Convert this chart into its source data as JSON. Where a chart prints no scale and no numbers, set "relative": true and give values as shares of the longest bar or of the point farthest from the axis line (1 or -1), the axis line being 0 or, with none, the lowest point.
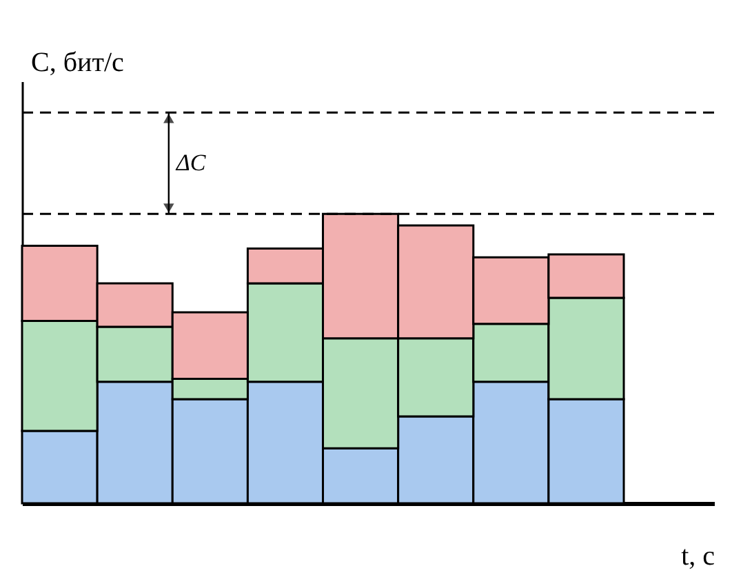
{
  "chart_data": {
    "type": "bar",
    "stacked": true,
    "relative": true,
    "xlabel": "t, с",
    "ylabel": "C, бит/с",
    "categories": [
      null,
      null,
      null,
      null,
      null,
      null,
      null,
      null
    ],
    "series": [
      {
        "color": "#a9c9ef",
        "values": [
          0.25,
          0.42,
          0.36,
          0.42,
          0.19,
          0.3,
          0.42,
          0.36
        ]
      },
      {
        "color": "#b3e0bc",
        "values": [
          0.38,
          0.19,
          0.07,
          0.34,
          0.38,
          0.27,
          0.2,
          0.35
        ]
      },
      {
        "color": "#f2b0b0",
        "values": [
          0.26,
          0.15,
          0.23,
          0.12,
          0.43,
          0.39,
          0.23,
          0.15
        ]
      }
    ],
    "ref_lines": [
      {
        "axis": "y",
        "value": 1.0,
        "line_style": "dashed"
      },
      {
        "axis": "y",
        "value": 1.35,
        "line_style": "dashed"
      }
    ],
    "annotations": [
      "ΔC"
    ],
    "legend": false
  }
}
